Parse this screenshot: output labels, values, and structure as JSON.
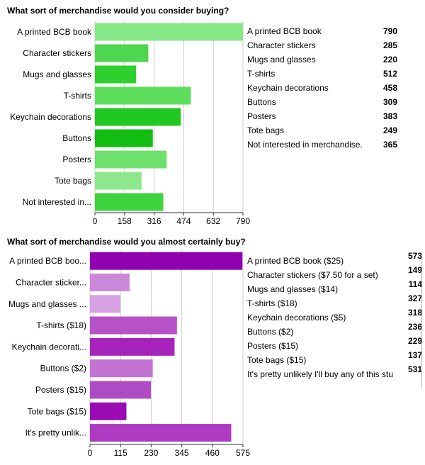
{
  "charts": [
    {
      "question": "What sort of merchandise would you consider buying?",
      "legend": [
        {
          "label": "A printed BCB book",
          "count": "790"
        },
        {
          "label": "Character stickers",
          "count": "285"
        },
        {
          "label": "Mugs and glasses",
          "count": "220"
        },
        {
          "label": "T-shirts",
          "count": "512"
        },
        {
          "label": "Keychain decorations",
          "count": "458"
        },
        {
          "label": "Buttons",
          "count": "309"
        },
        {
          "label": "Posters",
          "count": "383"
        },
        {
          "label": "Tote bags",
          "count": "249"
        },
        {
          "label": "Not interested in merchandise.",
          "count": "365"
        }
      ]
    },
    {
      "question": "What sort of merchandise would you almost certainly buy?",
      "legend": [
        {
          "label": "A printed BCB book ($25)",
          "count": "573"
        },
        {
          "label": "Character stickers ($7.50 for a set)",
          "count": "149"
        },
        {
          "label": "Mugs and glasses ($14)",
          "count": "114"
        },
        {
          "label": "T-shirts ($18)",
          "count": "327"
        },
        {
          "label": "Keychain decorations ($5)",
          "count": "318"
        },
        {
          "label": "Buttons ($2)",
          "count": "236"
        },
        {
          "label": "Posters ($15)",
          "count": "229"
        },
        {
          "label": "Tote bags ($15)",
          "count": "137"
        },
        {
          "label": "It's pretty unlikely I'll buy any of this stu",
          "count": "531"
        }
      ]
    }
  ],
  "chart_data": [
    {
      "type": "bar",
      "orientation": "horizontal",
      "title": "What sort of merchandise would you consider buying?",
      "categories": [
        "A printed BCB book",
        "Character stickers",
        "Mugs and glasses",
        "T-shirts",
        "Keychain decorations",
        "Buttons",
        "Posters",
        "Tote bags",
        "Not interested in..."
      ],
      "values": [
        790,
        285,
        220,
        512,
        458,
        309,
        383,
        249,
        365
      ],
      "colors": [
        "#86e886",
        "#4fd54f",
        "#2ecf2e",
        "#5cde5c",
        "#22c822",
        "#12bd12",
        "#6ee06e",
        "#8de88d",
        "#3dd43d"
      ],
      "xticks": [
        "0",
        "158",
        "316",
        "474",
        "632",
        "790"
      ],
      "xlim": [
        0,
        790
      ],
      "grid": true,
      "legend": "right"
    },
    {
      "type": "bar",
      "orientation": "horizontal",
      "title": "What sort of merchandise would you almost certainly buy?",
      "categories": [
        "A printed BCB boo...",
        "Character sticker...",
        "Mugs and glasses ...",
        "T-shirts ($18)",
        "Keychain decorati...",
        "Buttons ($2)",
        "Posters ($15)",
        "Tote bags ($15)",
        "It's pretty unlik..."
      ],
      "values": [
        573,
        149,
        114,
        327,
        318,
        236,
        229,
        137,
        531
      ],
      "colors": [
        "#9100b0",
        "#cc88d8",
        "#d9a0e3",
        "#b552c8",
        "#a624bc",
        "#c374d2",
        "#b04cc3",
        "#9a0bb4",
        "#ad3cc2"
      ],
      "xticks": [
        "0",
        "115",
        "230",
        "345",
        "460",
        "575"
      ],
      "xlim": [
        0,
        575
      ],
      "grid": true,
      "legend": "right"
    }
  ]
}
